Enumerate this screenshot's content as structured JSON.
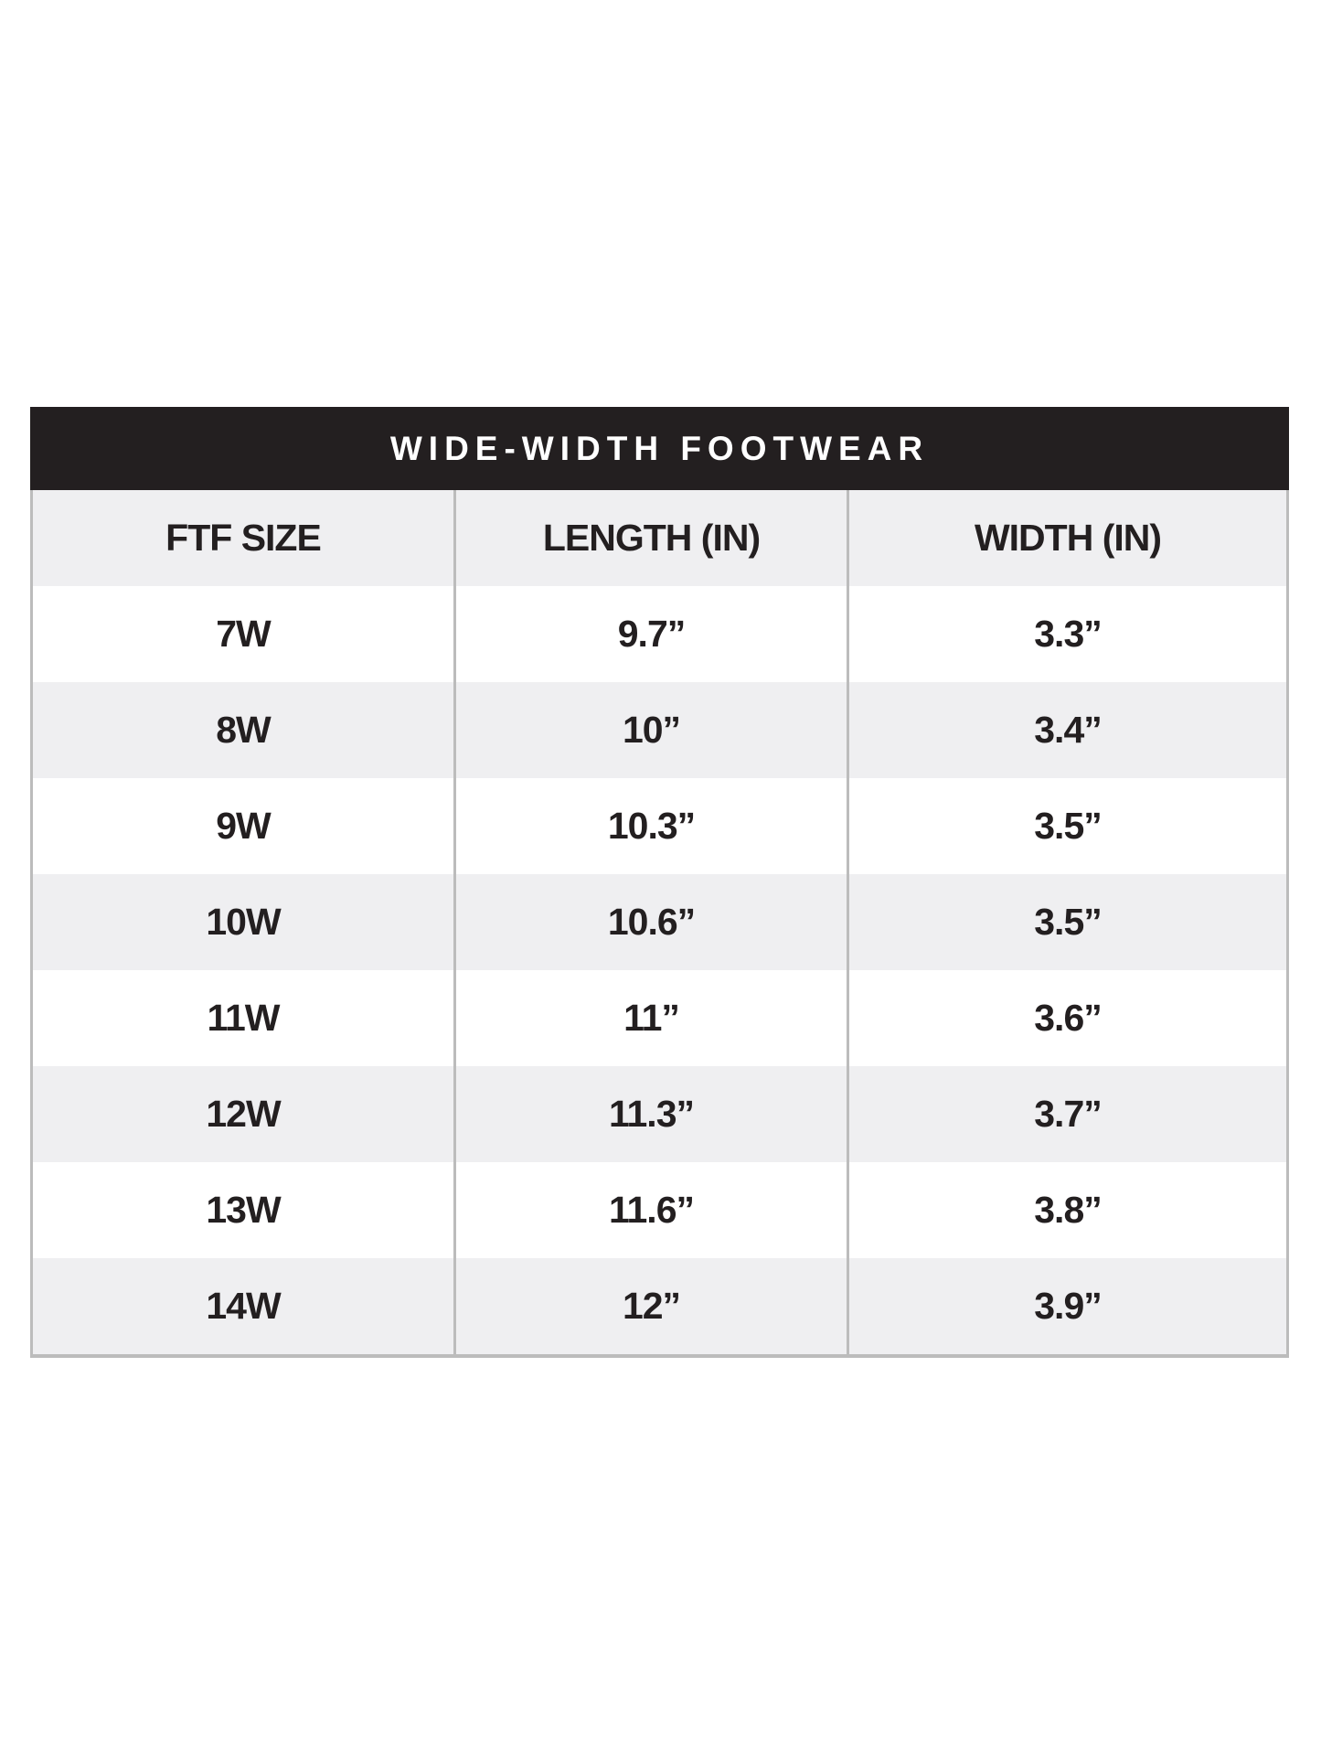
{
  "title": "WIDE-WIDTH FOOTWEAR",
  "headers": [
    "FTF SIZE",
    "LENGTH (IN)",
    "WIDTH (IN)"
  ],
  "rows": [
    [
      "7W",
      "9.7”",
      "3.3”"
    ],
    [
      "8W",
      "10”",
      "3.4”"
    ],
    [
      "9W",
      "10.3”",
      "3.5”"
    ],
    [
      "10W",
      "10.6”",
      "3.5”"
    ],
    [
      "11W",
      "11”",
      "3.6”"
    ],
    [
      "12W",
      "11.3”",
      "3.7”"
    ],
    [
      "13W",
      "11.6”",
      "3.8”"
    ],
    [
      "14W",
      "12”",
      "3.9”"
    ]
  ],
  "colors": {
    "title_bg": "#231f20",
    "stripe": "#efeff1",
    "border": "#bcbcbc"
  }
}
